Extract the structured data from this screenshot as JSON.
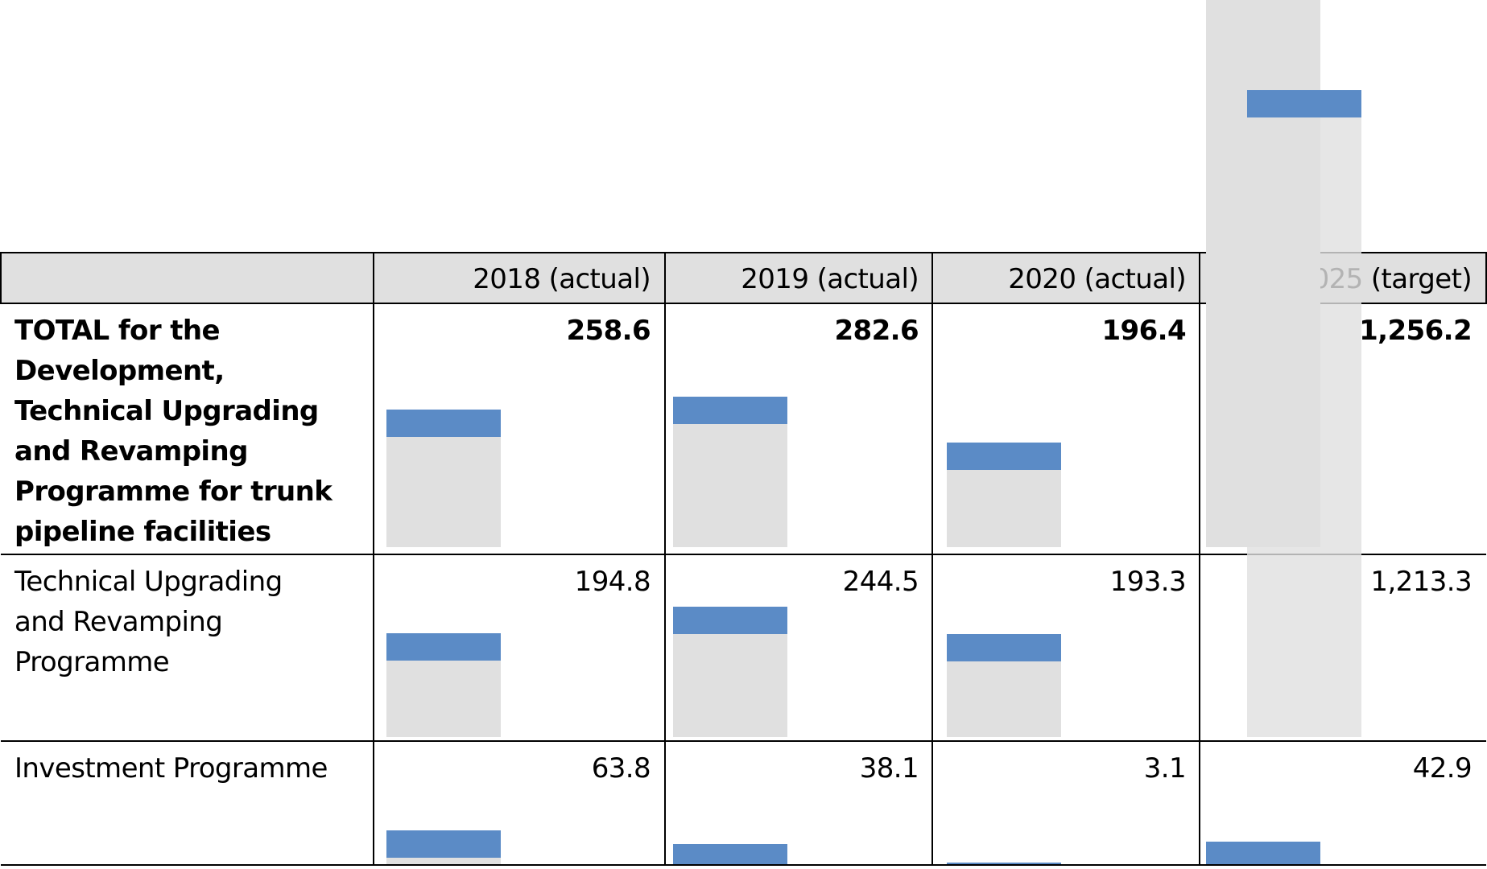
{
  "chart_data": {
    "type": "table",
    "columns": [
      "",
      "2018 (actual)",
      "2019 (actual)",
      "2020 (actual)",
      "2021–2025 (target)"
    ],
    "rows": [
      {
        "label": "TOTAL for the Development, Technical Upgrading and Revamping Programme for trunk pipeline facilities",
        "values": [
          258.6,
          282.6,
          196.4,
          1256.2
        ],
        "display": [
          "258.6",
          "282.6",
          "196.4",
          "1,256.2"
        ],
        "bold": true
      },
      {
        "label": "Technical Upgrading and Revamping Programme",
        "values": [
          194.8,
          244.5,
          193.3,
          1213.3
        ],
        "display": [
          "194.8",
          "244.5",
          "193.3",
          "1,213.3"
        ],
        "bold": false
      },
      {
        "label": "Investment Programme",
        "values": [
          63.8,
          38.1,
          3.1,
          42.9
        ],
        "display": [
          "63.8",
          "38.1",
          "3.1",
          "42.9"
        ],
        "bold": false
      }
    ],
    "bar_colors": {
      "cap": "#5b8bc6",
      "fill": "#e0e0e0"
    }
  }
}
